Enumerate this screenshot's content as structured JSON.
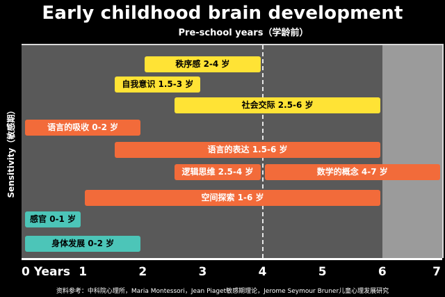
{
  "title": "Early childhood brain development",
  "subtitle": "Pre-school years（学龄前）",
  "ylabel": "Sensitivity（敏感期）",
  "source": "资料参考：中科院心理所，Maria Montessori，Jean Piaget敏感期理论，Jerome Seymour Bruner儿童心理发展研究",
  "colors": {
    "background": "#000000",
    "plot": "#595959",
    "shade": "#9b9b9b",
    "yellow": "#ffe335",
    "orange": "#f26b3a",
    "teal": "#4cc5b8"
  },
  "chart_data": {
    "type": "bar",
    "orientation": "horizontal-range",
    "xlim": [
      0,
      7
    ],
    "x_ticks": [
      "0 Years",
      "1",
      "2",
      "3",
      "4",
      "5",
      "6",
      "7"
    ],
    "highlight": {
      "dashed_line_at": 4,
      "shaded_range": [
        6,
        7
      ]
    },
    "grid": false,
    "bars": [
      {
        "label": "秩序感 2-4 岁",
        "start": 2,
        "end": 4,
        "color": "yellow"
      },
      {
        "label": "自我意识 1.5-3 岁",
        "start": 1.5,
        "end": 3,
        "color": "yellow"
      },
      {
        "label": "社会交际 2.5-6 岁",
        "start": 2.5,
        "end": 6,
        "color": "yellow"
      },
      {
        "label": "语言的吸收 0-2 岁",
        "start": 0,
        "end": 2,
        "color": "orange"
      },
      {
        "label": "语言的表达 1.5-6 岁",
        "start": 1.5,
        "end": 6,
        "color": "orange"
      },
      {
        "label": "逻辑思维 2.5-4 岁",
        "start": 2.5,
        "end": 4,
        "color": "orange"
      },
      {
        "label": "数学的概念 4-7 岁",
        "start": 4,
        "end": 7,
        "color": "orange"
      },
      {
        "label": "空间探索 1-6 岁",
        "start": 1,
        "end": 6,
        "color": "orange"
      },
      {
        "label": "感官 0-1 岁",
        "start": 0,
        "end": 1,
        "color": "teal"
      },
      {
        "label": "身体发展 0-2 岁",
        "start": 0,
        "end": 2,
        "color": "teal"
      }
    ]
  }
}
